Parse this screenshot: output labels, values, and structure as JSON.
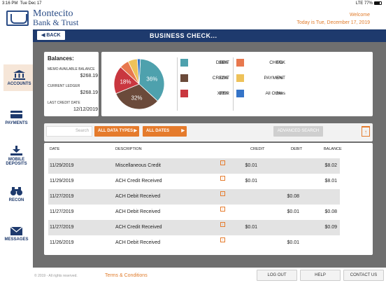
{
  "status_bar": {
    "time": "3:16 PM",
    "date": "Tue Dec 17",
    "signal": "LTE",
    "battery": "77%"
  },
  "brand": {
    "line1": "Montecito",
    "line2": "Bank & Trust"
  },
  "welcome": {
    "greeting": "Welcome",
    "date_text": "Today is Tue, December 17, 2019"
  },
  "nav": {
    "back_label": "BACK",
    "title": "BUSINESS CHECK..."
  },
  "sidebar": {
    "items": [
      {
        "label": "ACCOUNTS",
        "icon": "bank-icon"
      },
      {
        "label": "PAYMENTS",
        "icon": "card-icon"
      },
      {
        "label": "MOBILE DEPOSITS",
        "icon": "download-icon"
      },
      {
        "label": "RECON",
        "icon": "binoculars-icon"
      },
      {
        "label": "MESSAGES",
        "icon": "envelope-icon"
      }
    ]
  },
  "balances": {
    "title": "Balances:",
    "rows": [
      {
        "label": "MEMO AVAILABLE BALANCE",
        "value": "$268.19"
      },
      {
        "label": "CURRENT LEDGER",
        "value": "$268.19"
      },
      {
        "label": "LAST CREDIT DATE",
        "value": "12/12/2019"
      }
    ]
  },
  "chart_data": {
    "type": "pie",
    "slices": [
      {
        "name": "DEBIT",
        "value": 36,
        "color": "#4ea1ad"
      },
      {
        "name": "CREDIT",
        "value": 32,
        "color": "#6b4a3a"
      },
      {
        "name": "XFER",
        "value": 18,
        "color": "#c9373f"
      },
      {
        "name": "CHECK",
        "value": 6,
        "color": "#e8784e"
      },
      {
        "name": "PAYMENT",
        "value": 6,
        "color": "#eec25a"
      },
      {
        "name": "All Others",
        "value": 2,
        "color": "#3574c8"
      }
    ],
    "slice_labels": [
      "36%",
      "32%",
      "18%"
    ]
  },
  "legend": [
    {
      "name": "DEBIT",
      "pct": "36%"
    },
    {
      "name": "CREDIT",
      "pct": "32%"
    },
    {
      "name": "XFER",
      "pct": "18%"
    },
    {
      "name": "CHECK",
      "pct": "6%"
    },
    {
      "name": "PAYMENT",
      "pct": "6%"
    },
    {
      "name": "All Others",
      "pct": "2%"
    }
  ],
  "toolbar": {
    "search_placeholder": "Search",
    "data_types_label": "ALL DATA TYPES",
    "dates_label": "ALL DATES",
    "advanced_label": "ADVANCED SEARCH"
  },
  "table": {
    "headers": {
      "date": "DATE",
      "description": "DESCRIPTION",
      "credit": "CREDIT",
      "debit": "DEBIT",
      "balance": "BALANCE"
    },
    "rows": [
      {
        "date": "11/29/2019",
        "description": "Miscellaneous Credit",
        "credit": "$0.01",
        "debit": "",
        "balance": "$8.02"
      },
      {
        "date": "11/29/2019",
        "description": "ACH Credit Received",
        "credit": "$0.01",
        "debit": "",
        "balance": "$8.01"
      },
      {
        "date": "11/27/2019",
        "description": "ACH Debit Received",
        "credit": "",
        "debit": "$0.08",
        "balance": ""
      },
      {
        "date": "11/27/2019",
        "description": "ACH Debit Received",
        "credit": "",
        "debit": "$0.01",
        "balance": "$0.08"
      },
      {
        "date": "11/27/2019",
        "description": "ACH Credit Received",
        "credit": "$0.01",
        "debit": "",
        "balance": "$0.09"
      },
      {
        "date": "11/26/2019",
        "description": "ACH Debit Received",
        "credit": "",
        "debit": "$0.01",
        "balance": ""
      }
    ]
  },
  "footer": {
    "copyright": "© 2019 - All rights reserved.",
    "terms": "Terms & Conditions",
    "logout": "LOG OUT",
    "help": "HELP",
    "contact": "CONTACT US"
  }
}
